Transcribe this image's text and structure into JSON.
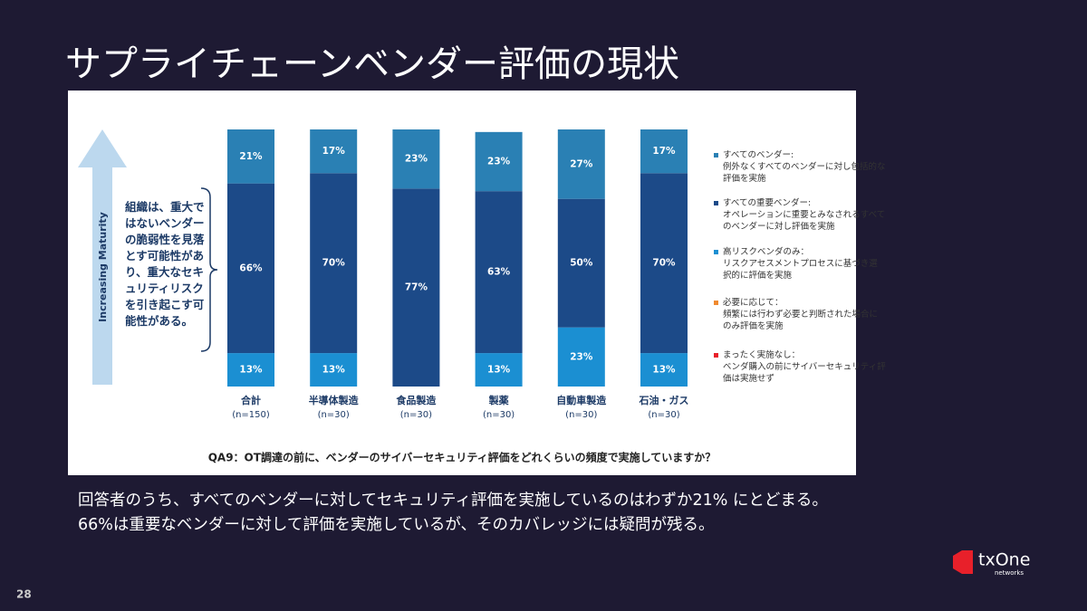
{
  "slide_title": "サプライチェーンベンダー評価の現状",
  "chart_data": {
    "type": "stacked_bar",
    "categories": [
      "合計",
      "半導体製造",
      "食品製造",
      "製薬",
      "自動車製造",
      "石油・ガス"
    ],
    "sample_sizes": [
      "(n=150)",
      "(n=30)",
      "(n=30)",
      "(n=30)",
      "(n=30)",
      "(n=30)"
    ],
    "ylim": [
      0,
      100
    ],
    "axis_label": "Increasing Maturity",
    "annotation": "組織は、重大ではないベンダーの脆弱性を見落とす可能性があり、重大なセキュリティリスクを引き起こす可能性がある。",
    "question": "QA9：OT調達の前に、ベンダーのサイバーセキュリティ評価をどれくらいの頻度で実施していますか？",
    "series": [
      {
        "name": "すべてのベンダー:",
        "description": "例外なくすべてのベンダーに対し包括的な評価を実施",
        "color": "#2a80b4",
        "values": [
          21,
          17,
          23,
          23,
          27,
          17
        ],
        "value_labels": [
          "21%",
          "17%",
          "23%",
          "23%",
          "27%",
          "17%"
        ]
      },
      {
        "name": "すべての重要ベンダー:",
        "description": "オペレーションに重要とみなされるすべてのベンダーに対し評価を実施",
        "color": "#1c4a88",
        "values": [
          66,
          70,
          77,
          63,
          50,
          70
        ],
        "value_labels": [
          "66%",
          "70%",
          "77%",
          "63%",
          "50%",
          "70%"
        ]
      },
      {
        "name": "高リスクベンダのみ：",
        "description": "リスクアセスメントプロセスに基づき選択的に評価を実施",
        "color": "#1b8fd2",
        "values": [
          13,
          13,
          null,
          13,
          23,
          13
        ],
        "value_labels": [
          "13%",
          "13%",
          null,
          "13%",
          "23%",
          "13%"
        ]
      },
      {
        "name": "必要に応じて：",
        "description": "頻繁には行わず必要と判断された場合にのみ評価を実施",
        "color": "#f08a30",
        "values": [
          null,
          null,
          null,
          null,
          null,
          null
        ]
      },
      {
        "name": "まったく実施なし：",
        "description": "ベンダ購入の前にサイバーセキュリティ評価は実施せず",
        "color": "#e8202a",
        "values": [
          null,
          null,
          null,
          null,
          null,
          null
        ]
      }
    ]
  },
  "body": [
    "回答者のうち、すべてのベンダーに対してセキュリティ評価を実施しているのはわずか21% にとどまる。",
    "66%は重要なベンダーに対して評価を実施しているが、そのカバレッジには疑問が残る。"
  ],
  "page_number": "28",
  "logo": {
    "name": "txOne",
    "sub": "networks"
  }
}
